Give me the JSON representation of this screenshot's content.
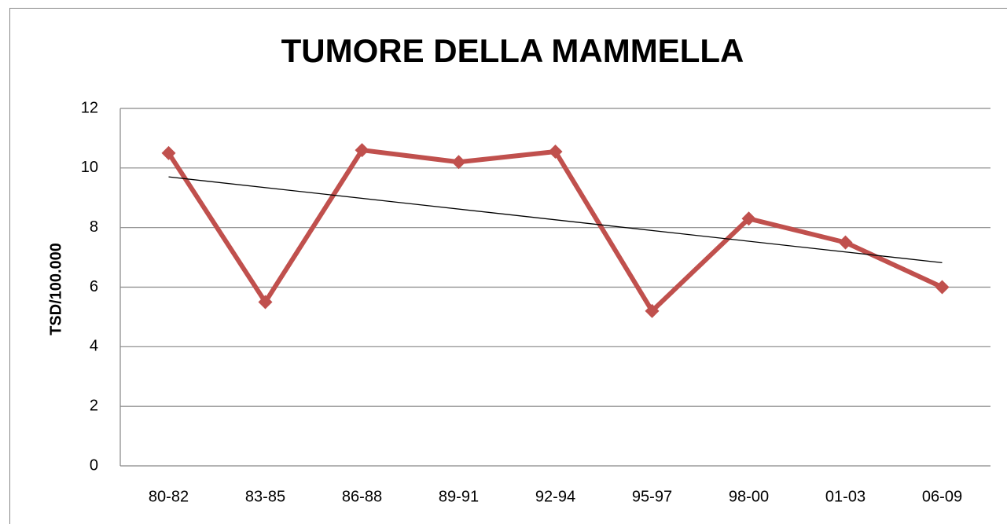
{
  "chart_data": {
    "type": "line",
    "title": "TUMORE DELLA MAMMELLA",
    "y_label": "TSD/100.000",
    "categories": [
      "80-82",
      "83-85",
      "86-88",
      "89-91",
      "92-94",
      "95-97",
      "98-00",
      "01-03",
      "06-09"
    ],
    "series": [
      {
        "color": "#c0504d",
        "values": [
          10.5,
          5.5,
          10.6,
          10.2,
          10.55,
          5.2,
          8.3,
          7.5,
          6.0
        ]
      }
    ],
    "ylim": [
      0,
      12
    ],
    "yticks": [
      0,
      2,
      4,
      6,
      8,
      10,
      12
    ],
    "grid": true,
    "trendline": "linear",
    "marker": "diamond"
  }
}
